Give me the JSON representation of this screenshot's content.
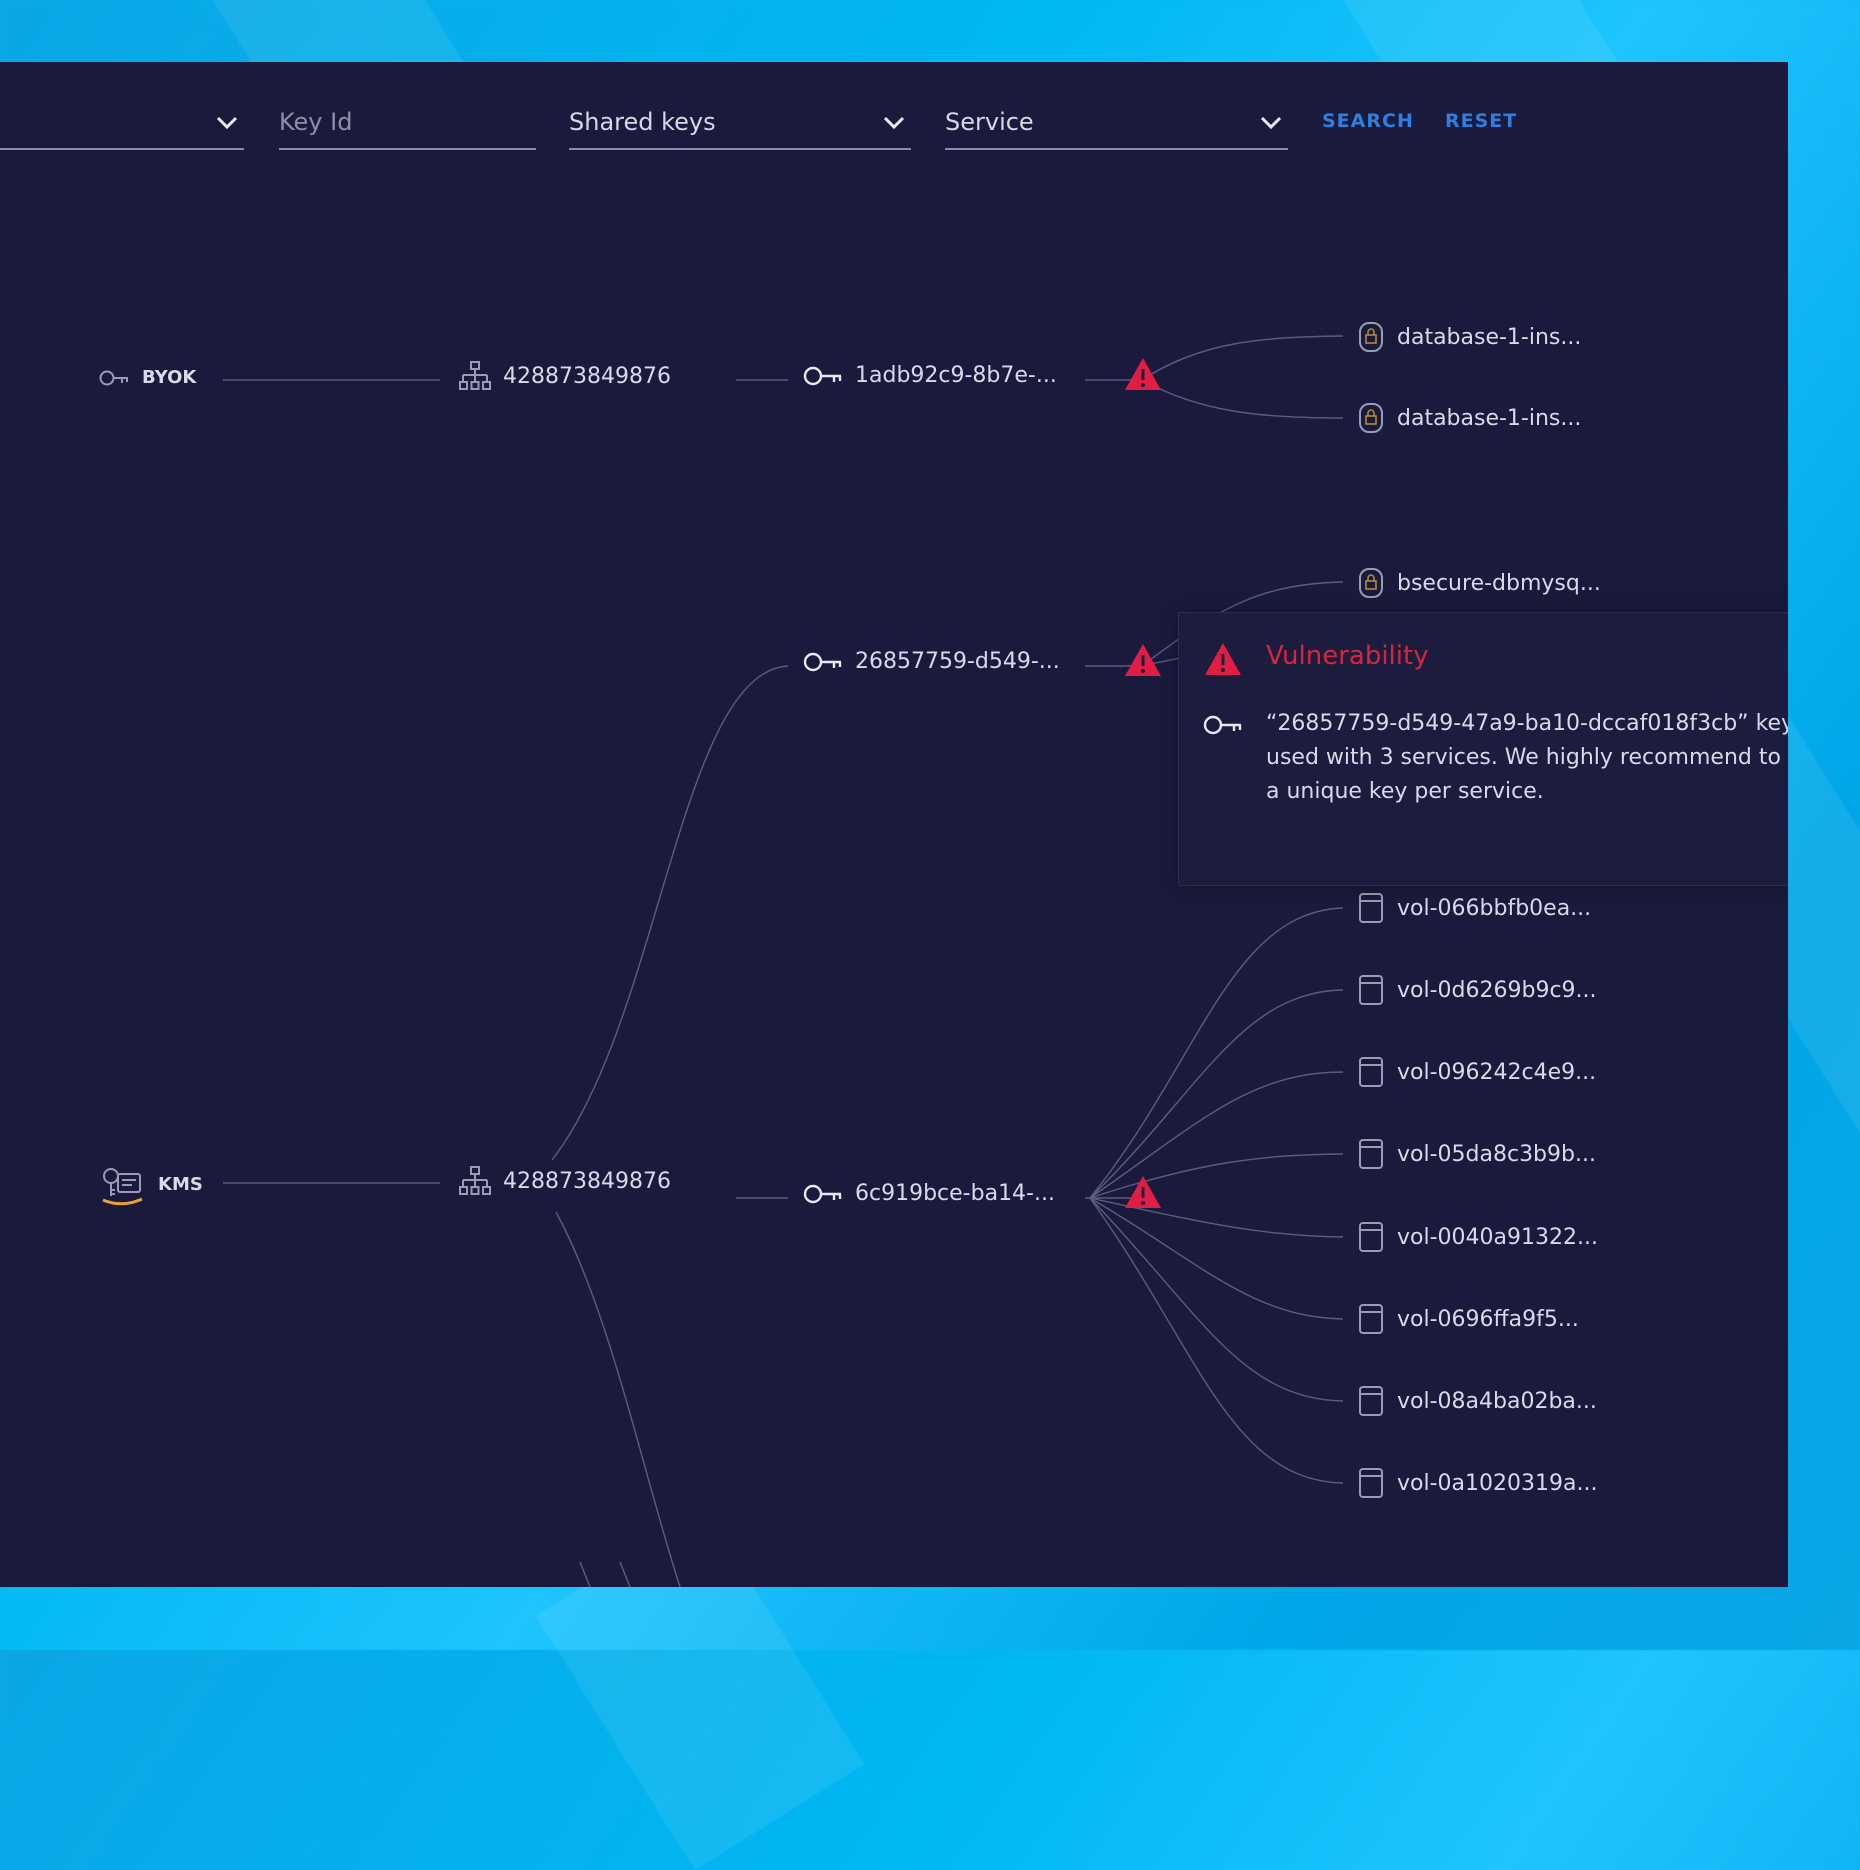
{
  "colors": {
    "panel_bg": "#1a1b3c",
    "accent_blue": "#2f7fe0",
    "warning_red": "#e01e45",
    "text": "#d8dae8",
    "edge": "#5b5d80"
  },
  "filters": {
    "select_1": {
      "value": ""
    },
    "key_id": {
      "placeholder": "Key Id"
    },
    "key_type": {
      "value": "Shared keys"
    },
    "service": {
      "value": "Service"
    },
    "search_label": "SEARCH",
    "reset_label": "RESET"
  },
  "graph": {
    "providers": [
      {
        "label": "BYOK",
        "icon": "key-outline-icon"
      },
      {
        "label": "KMS",
        "icon": "aws-kms-icon"
      }
    ],
    "accounts": [
      {
        "label": "428873849876",
        "icon": "org-hierarchy-icon"
      },
      {
        "label": "428873849876",
        "icon": "org-hierarchy-icon"
      }
    ],
    "keys": [
      {
        "label": "1adb92c9-8b7e-...",
        "icon": "key-icon",
        "warning": true
      },
      {
        "label": "26857759-d549-...",
        "icon": "key-icon",
        "warning": true
      },
      {
        "label": "6c919bce-ba14-...",
        "icon": "key-icon",
        "warning": true
      }
    ],
    "resources": [
      {
        "label": "database-1-ins...",
        "icon": "database-lock-icon"
      },
      {
        "label": "database-1-ins...",
        "icon": "database-lock-icon"
      },
      {
        "label": "bsecure-dbmysq...",
        "icon": "database-lock-icon"
      },
      {
        "label": "vol-066bbfb0ea...",
        "icon": "volume-icon"
      },
      {
        "label": "vol-0d6269b9c9...",
        "icon": "volume-icon"
      },
      {
        "label": "vol-096242c4e9...",
        "icon": "volume-icon"
      },
      {
        "label": "vol-05da8c3b9b...",
        "icon": "volume-icon"
      },
      {
        "label": "vol-0040a91322...",
        "icon": "volume-icon"
      },
      {
        "label": "vol-0696ffa9f5...",
        "icon": "volume-icon"
      },
      {
        "label": "vol-08a4ba02ba...",
        "icon": "volume-icon"
      },
      {
        "label": "vol-0a1020319a...",
        "icon": "volume-icon"
      }
    ]
  },
  "tooltip": {
    "title": "Vulnerability",
    "message": "“26857759-d549-47a9-ba10-dccaf018f3cb” key used with 3 services. We highly recommend to a unique key per service."
  }
}
